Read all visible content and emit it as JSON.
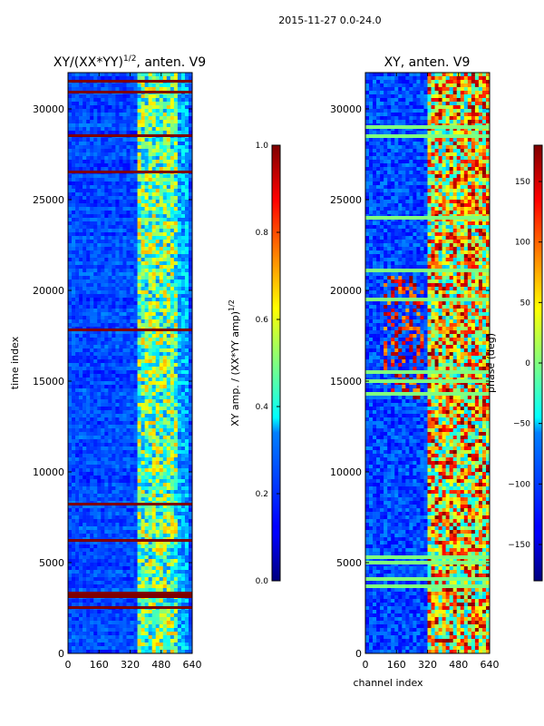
{
  "figure": {
    "suptitle": "2015-11-27 0.0-24.0"
  },
  "chart_data": [
    {
      "type": "heatmap",
      "title": "XY/(XX*YY)^{1/2}, anten. V9",
      "title_main": "XY/(XX*YY)",
      "title_sup": "1/2",
      "title_tail": ", anten. V9",
      "xlabel": "",
      "ylabel": "time index",
      "xlim": [
        0,
        640
      ],
      "ylim": [
        0,
        32000
      ],
      "xticks": [
        0,
        160,
        320,
        480,
        640
      ],
      "yticks": [
        0,
        5000,
        10000,
        15000,
        20000,
        25000,
        30000
      ],
      "colormap": "jet",
      "colorbar": {
        "label": "XY amp. / (XX*YY amp)^{1/2}",
        "label_main": "XY amp. / (XX*YY amp)",
        "label_sup": "1/2",
        "range": [
          0.0,
          1.0
        ],
        "ticks": [
          "0.0",
          "0.2",
          "0.4",
          "0.6",
          "0.8",
          "1.0"
        ]
      },
      "flagged_time_rows": [
        3200,
        3300,
        30900,
        31500,
        28500,
        26500,
        17800,
        8200,
        6200,
        2500
      ]
    },
    {
      "type": "heatmap",
      "title": "XY, anten. V9",
      "xlabel": "channel index",
      "ylabel": "",
      "xlim": [
        0,
        640
      ],
      "ylim": [
        0,
        32000
      ],
      "xticks": [
        0,
        160,
        320,
        480,
        640
      ],
      "yticks": [
        0,
        5000,
        10000,
        15000,
        20000,
        25000,
        30000
      ],
      "colormap": "jet",
      "colorbar": {
        "label": "phase (deg)",
        "range": [
          -180,
          180
        ],
        "ticks": [
          "−150",
          "−100",
          "−50",
          "0",
          "50",
          "100",
          "150"
        ]
      }
    }
  ],
  "colors": {
    "jet_dark_blue": "#00007f",
    "jet_blue": "#0000ff",
    "jet_cyan": "#00ffff",
    "jet_yellow": "#ffff00",
    "jet_red": "#ff0000",
    "jet_dark_red": "#7f0000"
  }
}
